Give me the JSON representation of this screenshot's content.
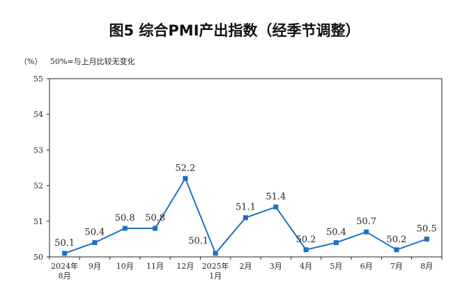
{
  "chart_data": {
    "type": "line",
    "title": "图5  综合PMI产出指数（经季节调整）",
    "unit": "（%）",
    "note": "50%=与上月比较无变化",
    "categories": [
      [
        "2024年",
        "8月"
      ],
      [
        "9月"
      ],
      [
        "10月"
      ],
      [
        "11月"
      ],
      [
        "12月"
      ],
      [
        "2025年",
        "1月"
      ],
      [
        "2月"
      ],
      [
        "3月"
      ],
      [
        "4月"
      ],
      [
        "5月"
      ],
      [
        "6月"
      ],
      [
        "7月"
      ],
      [
        "8月"
      ]
    ],
    "series": [
      {
        "values": [
          50.1,
          50.4,
          50.8,
          50.8,
          52.2,
          50.1,
          51.1,
          51.4,
          50.2,
          50.4,
          50.7,
          50.2,
          50.5
        ]
      }
    ],
    "value_labels": [
      "50.1",
      "50.4",
      "50.8",
      "50.8",
      "52.2",
      "50.1",
      "51.1",
      "51.4",
      "50.2",
      "50.4",
      "50.7",
      "50.2",
      "50.5"
    ],
    "label_position": [
      "above",
      "above",
      "above",
      "above",
      "above",
      "left",
      "above",
      "above",
      "above",
      "above",
      "above",
      "above",
      "above"
    ],
    "y_ticks": [
      "50",
      "51",
      "52",
      "53",
      "54",
      "55"
    ],
    "ylim": [
      50,
      55
    ],
    "grid": false,
    "colors": {
      "line": "#1f6fc5",
      "marker": "#1f6fc5",
      "axis": "#222222",
      "text": "#222222"
    }
  }
}
